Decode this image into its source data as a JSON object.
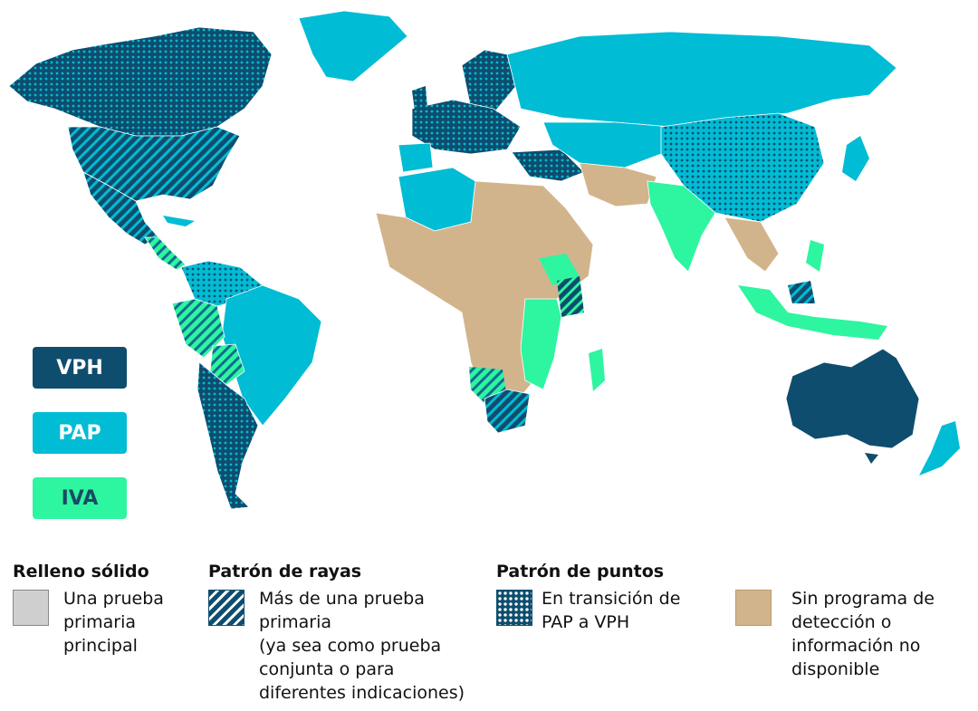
{
  "colors": {
    "ocean": "#ffffff",
    "vph": "#0e4d6e",
    "pap": "#00bcd4",
    "iva": "#2ef5a0",
    "none": "#d2b48c",
    "single_primary": "#cfcfcf"
  },
  "map_legend": {
    "vph": {
      "label": "VPH",
      "color": "#0e4d6e",
      "text_color": "#ffffff"
    },
    "pap": {
      "label": "PAP",
      "color": "#00bcd4",
      "text_color": "#ffffff"
    },
    "iva": {
      "label": "IVA",
      "color": "#2ef5a0",
      "text_color": "#1a4a66"
    }
  },
  "pattern_legend": {
    "solid": {
      "title": "Relleno sólido",
      "text": "Una prueba\nprimaria\nprincipal"
    },
    "stripes": {
      "title": "Patrón de rayas",
      "text": "Más de una prueba\nprimaria\n(ya sea como prueba\nconjunta o para\ndiferentes indicaciones)"
    },
    "dots": {
      "title": "Patrón de puntos",
      "text": "En transición de\nPAP a VPH"
    },
    "none": {
      "title": "",
      "text": "Sin programa de\ndetección o\ninformación no\ndisponible"
    }
  }
}
